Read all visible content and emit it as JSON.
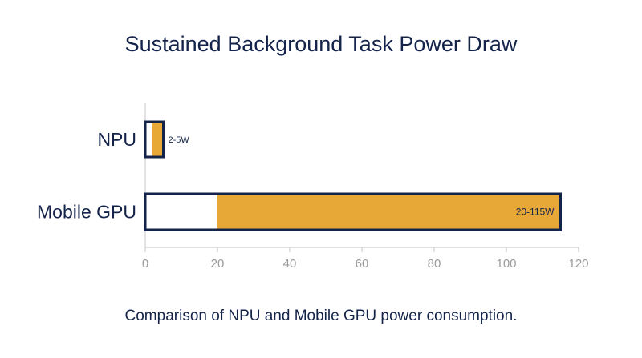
{
  "chart_data": {
    "type": "bar",
    "orientation": "horizontal",
    "title": "Sustained Background Task Power Draw",
    "caption": "Comparison of NPU and Mobile GPU power consumption.",
    "xlabel": "",
    "ylabel": "",
    "xlim": [
      0,
      120
    ],
    "x_ticks": [
      0,
      20,
      40,
      60,
      80,
      100,
      120
    ],
    "grid": false,
    "categories": [
      "NPU",
      "Mobile GPU"
    ],
    "ranges": [
      {
        "category": "NPU",
        "min": 2,
        "max": 5,
        "label": "2-5W"
      },
      {
        "category": "Mobile GPU",
        "min": 20,
        "max": 115,
        "label": "20-115W"
      }
    ],
    "colors": {
      "fill": "#e8a838",
      "outline": "#14234a",
      "axis": "#cfcfcf",
      "tick_text": "#9a9a9a",
      "text": "#14234a"
    }
  }
}
